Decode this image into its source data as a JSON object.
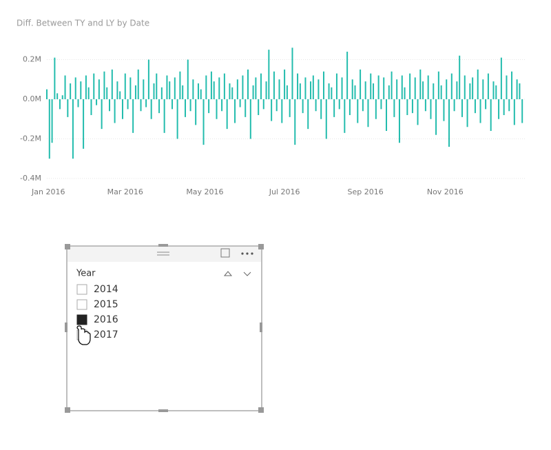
{
  "chart_data": {
    "type": "bar",
    "title": "Diff. Between TY and LY by Date",
    "color": "#22bcad",
    "xlim": [
      0,
      366
    ],
    "xticks": [
      {
        "value": 0,
        "label": "Jan 2016"
      },
      {
        "value": 60,
        "label": "Mar 2016"
      },
      {
        "value": 121,
        "label": "May 2016"
      },
      {
        "value": 182,
        "label": "Jul 2016"
      },
      {
        "value": 244,
        "label": "Sep 2016"
      },
      {
        "value": 305,
        "label": "Nov 2016"
      }
    ],
    "ylim": [
      -400000,
      260000
    ],
    "yticks": [
      {
        "value": -400000,
        "label": "-0.4M"
      },
      {
        "value": -200000,
        "label": "-0.2M"
      },
      {
        "value": 0,
        "label": "0.0M"
      },
      {
        "value": 200000,
        "label": "0.2M"
      }
    ],
    "grid": true,
    "x": [
      0,
      2,
      4,
      6,
      8,
      10,
      12,
      14,
      16,
      18,
      20,
      22,
      24,
      26,
      28,
      30,
      32,
      34,
      36,
      38,
      40,
      42,
      44,
      46,
      48,
      50,
      52,
      54,
      56,
      58,
      60,
      62,
      64,
      66,
      68,
      70,
      72,
      74,
      76,
      78,
      80,
      82,
      84,
      86,
      88,
      90,
      92,
      94,
      96,
      98,
      100,
      102,
      104,
      106,
      108,
      110,
      112,
      114,
      116,
      118,
      120,
      122,
      124,
      126,
      128,
      130,
      132,
      134,
      136,
      138,
      140,
      142,
      144,
      146,
      148,
      150,
      152,
      154,
      156,
      158,
      160,
      162,
      164,
      166,
      168,
      170,
      172,
      174,
      176,
      178,
      180,
      182,
      184,
      186,
      188,
      190,
      192,
      194,
      196,
      198,
      200,
      202,
      204,
      206,
      208,
      210,
      212,
      214,
      216,
      218,
      220,
      222,
      224,
      226,
      228,
      230,
      232,
      234,
      236,
      238,
      240,
      242,
      244,
      246,
      248,
      250,
      252,
      254,
      256,
      258,
      260,
      262,
      264,
      266,
      268,
      270,
      272,
      274,
      276,
      278,
      280,
      282,
      284,
      286,
      288,
      290,
      292,
      294,
      296,
      298,
      300,
      302,
      304,
      306,
      308,
      310,
      312,
      314,
      316,
      318,
      320,
      322,
      324,
      326,
      328,
      330,
      332,
      334,
      336,
      338,
      340,
      342,
      344,
      346,
      348,
      350,
      352,
      354,
      356,
      358,
      360,
      362,
      364
    ],
    "values": [
      50000,
      -300000,
      -220000,
      210000,
      30000,
      -50000,
      20000,
      120000,
      -90000,
      80000,
      -300000,
      110000,
      -40000,
      90000,
      -250000,
      120000,
      60000,
      -80000,
      130000,
      -30000,
      100000,
      -150000,
      140000,
      60000,
      -60000,
      150000,
      -120000,
      90000,
      40000,
      -100000,
      130000,
      -50000,
      110000,
      -170000,
      70000,
      150000,
      -60000,
      100000,
      -40000,
      200000,
      -100000,
      80000,
      130000,
      -70000,
      60000,
      -170000,
      120000,
      90000,
      -50000,
      110000,
      -200000,
      140000,
      70000,
      -90000,
      200000,
      -60000,
      100000,
      -130000,
      80000,
      50000,
      -230000,
      120000,
      -70000,
      140000,
      90000,
      -100000,
      110000,
      -60000,
      130000,
      -150000,
      80000,
      60000,
      -120000,
      100000,
      -40000,
      120000,
      -90000,
      150000,
      -200000,
      70000,
      110000,
      -80000,
      130000,
      -50000,
      90000,
      250000,
      -110000,
      140000,
      -60000,
      100000,
      -120000,
      150000,
      70000,
      -90000,
      260000,
      -230000,
      130000,
      80000,
      -70000,
      110000,
      -150000,
      90000,
      120000,
      -60000,
      100000,
      -100000,
      140000,
      -200000,
      80000,
      60000,
      -90000,
      130000,
      -50000,
      110000,
      -170000,
      240000,
      -80000,
      100000,
      70000,
      -120000,
      150000,
      -60000,
      90000,
      -140000,
      130000,
      80000,
      -100000,
      120000,
      -50000,
      110000,
      -160000,
      70000,
      140000,
      -90000,
      100000,
      -220000,
      120000,
      60000,
      -80000,
      130000,
      -70000,
      110000,
      -130000,
      150000,
      90000,
      -60000,
      120000,
      -100000,
      80000,
      -180000,
      140000,
      70000,
      -110000,
      100000,
      -240000,
      130000,
      -60000,
      90000,
      220000,
      -90000,
      120000,
      -140000,
      80000,
      110000,
      -70000,
      150000,
      -120000,
      100000,
      -50000,
      130000,
      -160000,
      90000,
      70000,
      -100000,
      210000,
      -80000,
      120000,
      -60000,
      140000,
      -130000,
      100000,
      80000,
      -120000
    ]
  },
  "slicer": {
    "title": "Year",
    "items": [
      {
        "label": "2014",
        "checked": false
      },
      {
        "label": "2015",
        "checked": false
      },
      {
        "label": "2016",
        "checked": true
      },
      {
        "label": "2017",
        "checked": false
      }
    ]
  }
}
